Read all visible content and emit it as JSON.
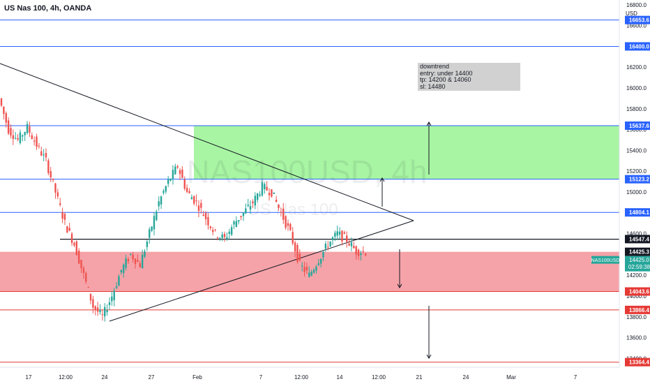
{
  "header": {
    "title": "US Nas 100, 4h, OANDA"
  },
  "watermark": {
    "symbol": "NAS100USD, 4h",
    "name": "US Nas 100"
  },
  "annotation": {
    "lines": [
      "downtrend",
      "entry: under 14400",
      "tp: 14200 & 14060",
      "sl: 14480"
    ]
  },
  "colors": {
    "up": "#26a69a",
    "down": "#ef5350",
    "support_zone": "#f5a3a8",
    "resistance_zone": "#a8f5a3",
    "level_blue": "#2962ff",
    "level_red": "#e53935"
  },
  "chart_data": {
    "type": "candlestick",
    "title": "US Nas 100, 4h, OANDA",
    "currency": "USD",
    "y_ticks": [
      13400,
      13600,
      13800,
      14000,
      14200,
      14400,
      14600,
      14800,
      15000,
      15200,
      15400,
      15600,
      15800,
      16000,
      16200,
      16400,
      16600,
      16800
    ],
    "x_ticks": [
      "17",
      "12:00",
      "24",
      "27",
      "Feb",
      "7",
      "12:00",
      "14",
      "12:00",
      "21",
      "24",
      "Mar",
      "7"
    ],
    "levels": [
      {
        "value": 16653.6,
        "label": "16653.6",
        "color": "blue"
      },
      {
        "value": 16400.0,
        "label": "16400.0",
        "color": "blue"
      },
      {
        "value": 15637.6,
        "label": "15637.6",
        "color": "blue"
      },
      {
        "value": 15123.2,
        "label": "15123.2",
        "color": "blue"
      },
      {
        "value": 14804.1,
        "label": "14804.1",
        "color": "blue"
      },
      {
        "value": 14547.4,
        "label": "14547.4",
        "color": "black"
      },
      {
        "value": 14425.3,
        "label": "14425.3",
        "color": "black"
      },
      {
        "value": 14043.6,
        "label": "14043.6",
        "color": "red"
      },
      {
        "value": 13866.4,
        "label": "13866.4",
        "color": "red"
      },
      {
        "value": 13364.4,
        "label": "13364.4",
        "color": "red"
      }
    ],
    "current_price": {
      "symbol": "NAS100USD",
      "value": "14425.0",
      "countdown": "02:59:38"
    },
    "zones": [
      {
        "type": "resistance",
        "from": 15123.2,
        "to": 15637.6
      },
      {
        "type": "support",
        "from": 14043.6,
        "to": 14425.3
      }
    ],
    "close_series": [
      15900,
      15600,
      15500,
      15620,
      15450,
      15300,
      15000,
      14700,
      14500,
      14200,
      13900,
      13800,
      14000,
      14250,
      14400,
      14300,
      14600,
      14900,
      15100,
      15250,
      15000,
      14900,
      14750,
      14600,
      14550,
      14700,
      14800,
      14900,
      15050,
      15000,
      14800,
      14600,
      14300,
      14200,
      14350,
      14500,
      14600,
      14540,
      14430,
      14425
    ]
  }
}
